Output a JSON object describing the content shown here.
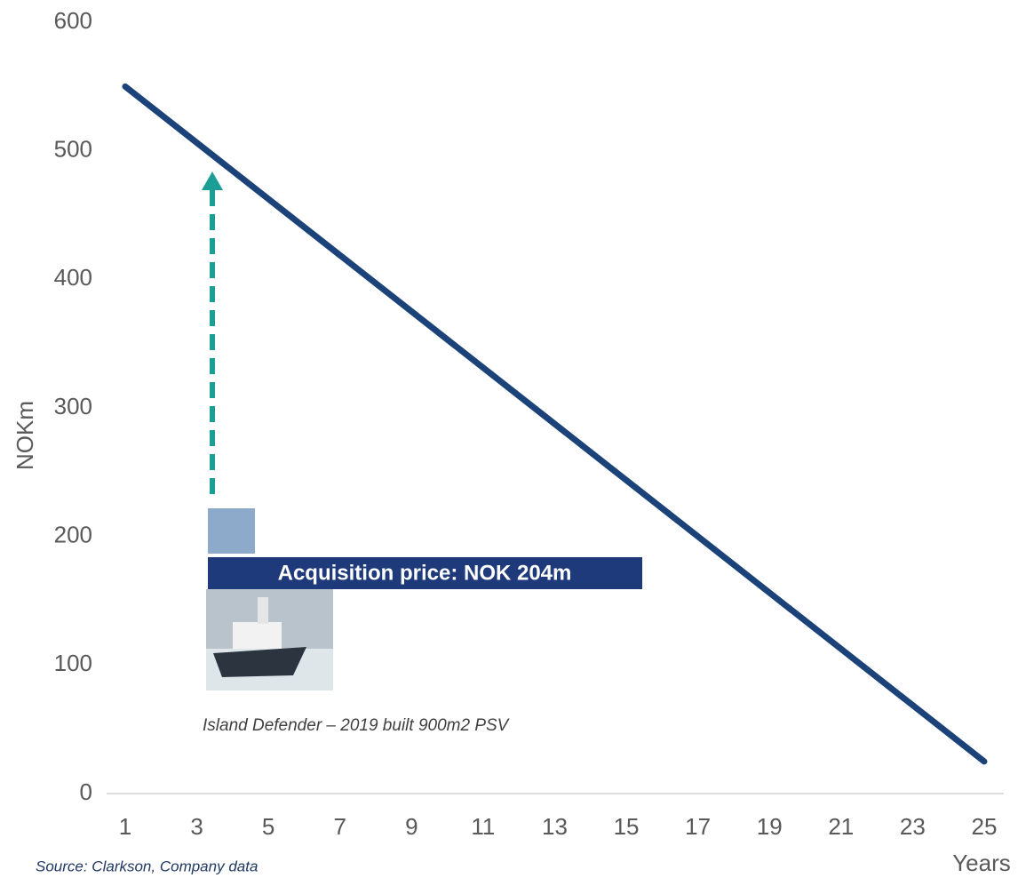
{
  "chart_data": {
    "type": "line",
    "y_label": "NOKm",
    "x_label": "Years",
    "source": "Source: Clarkson, Company data",
    "annotation": "Acquisition price: NOK 204m",
    "image_caption": "Island Defender – 2019 built 900m2 PSV",
    "x": [
      1,
      25
    ],
    "series": [
      {
        "color": "#1b4279",
        "values": [
          550,
          25
        ]
      }
    ],
    "xlim": [
      0.5,
      25.5
    ],
    "xticks": [
      1,
      3,
      5,
      7,
      9,
      11,
      13,
      15,
      17,
      19,
      21,
      23,
      25
    ],
    "ylim": [
      0,
      600
    ],
    "yticks": [
      0,
      100,
      200,
      300,
      400,
      500,
      600
    ],
    "grid": false
  }
}
